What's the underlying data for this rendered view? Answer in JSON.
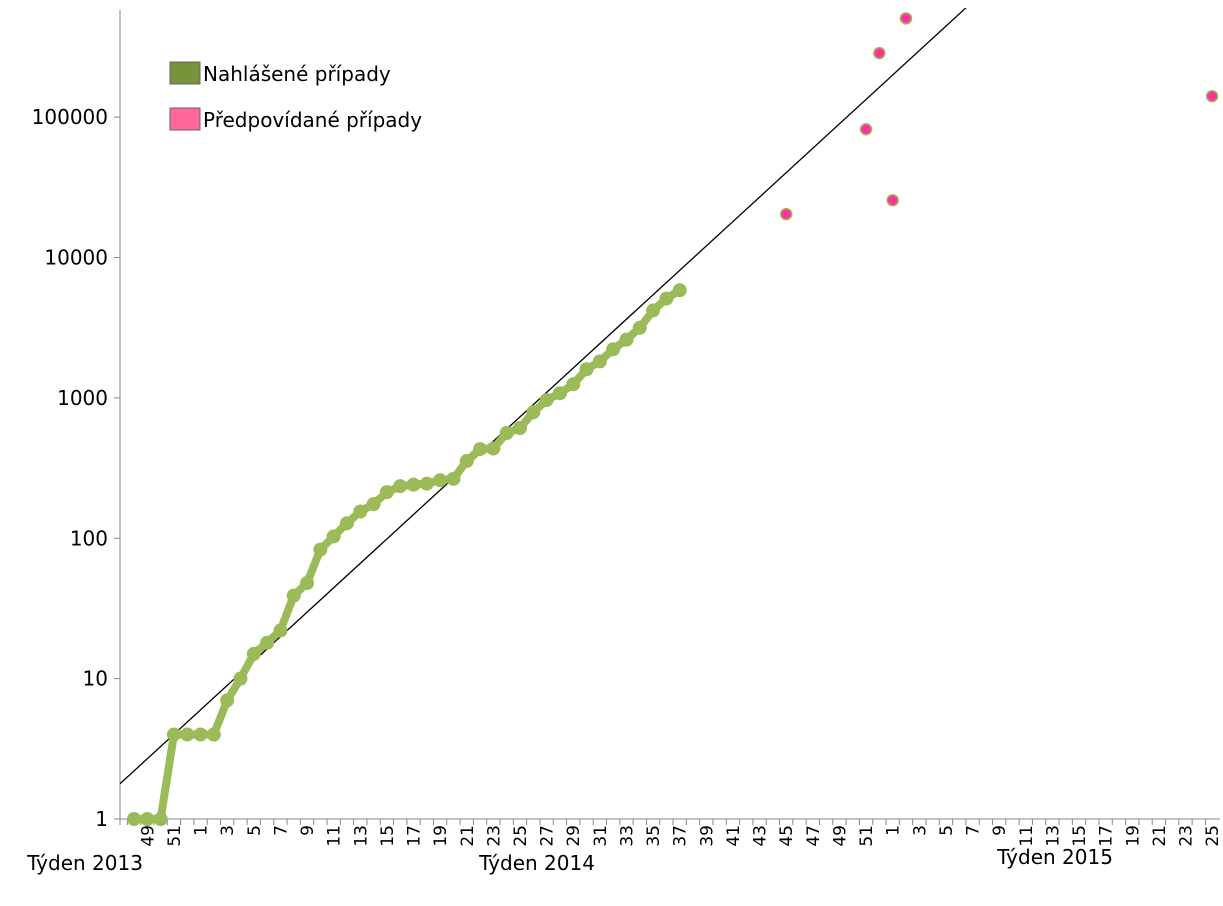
{
  "chart_data": {
    "type": "line",
    "x_group_labels": [
      "Týden 2013",
      "Týden 2014",
      "Týden 2015"
    ],
    "categories": [
      null,
      "49",
      null,
      "51",
      null,
      "1",
      null,
      "3",
      null,
      "5",
      null,
      "7",
      null,
      "9",
      null,
      "11",
      null,
      "13",
      null,
      "15",
      null,
      "17",
      null,
      "19",
      null,
      "21",
      null,
      "23",
      null,
      "25",
      null,
      "27",
      null,
      "29",
      null,
      "31",
      null,
      "33",
      null,
      "35",
      null,
      "37",
      null,
      "39",
      null,
      "41",
      null,
      "43",
      null,
      "45",
      null,
      "47",
      null,
      "49",
      null,
      "51",
      null,
      "1",
      null,
      "3",
      null,
      "5",
      null,
      "7",
      null,
      "9",
      null,
      "11",
      null,
      "13",
      null,
      "15",
      null,
      "17",
      null,
      "19",
      null,
      "21",
      null,
      "23",
      null,
      "25"
    ],
    "series": [
      {
        "name": "Nahlášené případy",
        "color": "#9bbb59",
        "legend_color": "#77933c",
        "style": "line",
        "values": [
          1,
          1,
          1,
          4,
          4,
          4,
          4,
          7,
          10,
          15,
          18,
          22,
          39,
          48,
          83,
          103,
          128,
          155,
          175,
          213,
          235,
          241,
          245,
          259,
          265,
          355,
          432,
          436,
          562,
          610,
          790,
          965,
          1080,
          1250,
          1600,
          1820,
          2220,
          2600,
          3160,
          4200,
          5100,
          5850,
          null,
          null,
          null,
          null,
          null,
          null,
          null,
          null,
          null,
          null,
          null,
          null,
          null,
          null,
          null,
          null,
          null,
          null,
          null,
          null,
          null,
          null,
          null,
          null,
          null,
          null,
          null,
          null,
          null,
          null,
          null,
          null,
          null,
          null,
          null,
          null,
          null,
          null,
          null,
          null
        ]
      },
      {
        "name": "Předpovídané případy",
        "color": "#ff3399",
        "legend_color": "#ff6699",
        "style": "markers",
        "values": [
          null,
          null,
          null,
          null,
          null,
          null,
          null,
          null,
          null,
          null,
          null,
          null,
          null,
          null,
          null,
          null,
          null,
          null,
          null,
          null,
          null,
          null,
          null,
          null,
          null,
          null,
          null,
          null,
          null,
          null,
          null,
          null,
          null,
          null,
          null,
          null,
          null,
          null,
          null,
          null,
          null,
          null,
          null,
          null,
          null,
          null,
          null,
          null,
          null,
          20400,
          null,
          null,
          null,
          null,
          null,
          82000,
          286000,
          25600,
          506000,
          null,
          null,
          null,
          null,
          null,
          null,
          null,
          null,
          null,
          null,
          null,
          null,
          null,
          null,
          null,
          null,
          null,
          null,
          null,
          null,
          null,
          null,
          141000
        ]
      }
    ],
    "trendline": {
      "series": 0,
      "kind": "exponential",
      "color": "#000000"
    },
    "log_y": true,
    "ylim": [
      1,
      580000
    ],
    "yticks": [
      1,
      10,
      100,
      1000,
      10000,
      100000
    ],
    "legend": "upper left"
  }
}
